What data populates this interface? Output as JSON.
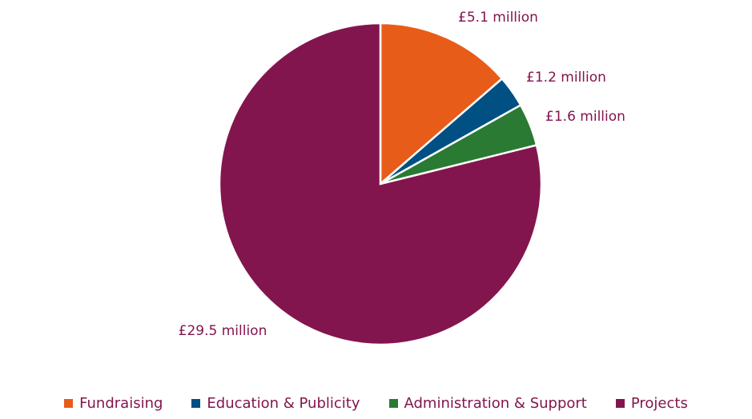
{
  "chart_data": {
    "type": "pie",
    "categories": [
      "Fundraising",
      "Education & Publicity",
      "Administration & Support",
      "Projects"
    ],
    "values": [
      5.1,
      1.2,
      1.6,
      29.5
    ],
    "value_labels": [
      "£5.1 million",
      "£1.2 million",
      "£1.6 million",
      "£29.5 million"
    ],
    "colors": [
      "#e85c1a",
      "#005084",
      "#2a7a34",
      "#83154e"
    ],
    "legend": "bottom"
  }
}
